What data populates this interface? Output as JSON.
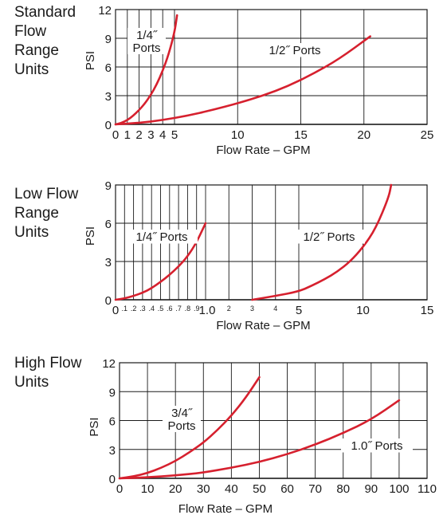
{
  "colors": {
    "curve": "#d6202e",
    "grid": "#1a1a1a",
    "text": "#1a1a1a"
  },
  "chart_data": [
    {
      "type": "line",
      "section_title": "Standard\nFlow\nRange\nUnits",
      "xlabel": "Flow Rate – GPM",
      "ylabel": "PSI",
      "xlim": [
        0,
        25
      ],
      "ylim": [
        0,
        12
      ],
      "x_ticks": [
        0,
        1,
        2,
        3,
        4,
        5,
        10,
        15,
        20,
        25
      ],
      "y_ticks": [
        0,
        3,
        6,
        9,
        12
      ],
      "grid": true,
      "series": [
        {
          "name": "1/4˝\nPorts",
          "x": [
            0,
            0.5,
            1,
            1.5,
            2,
            2.5,
            3,
            3.5,
            4,
            4.5,
            5,
            5.2
          ],
          "y": [
            0,
            0.15,
            0.45,
            0.9,
            1.5,
            2.2,
            3.1,
            4.2,
            5.6,
            7.3,
            9.6,
            11.4
          ]
        },
        {
          "name": "1/2˝ Ports",
          "x": [
            0,
            2,
            4,
            6,
            8,
            10,
            12,
            14,
            16,
            18,
            20.5
          ],
          "y": [
            0,
            0.15,
            0.45,
            0.9,
            1.5,
            2.2,
            3.0,
            4.0,
            5.3,
            6.8,
            9.2
          ]
        }
      ]
    },
    {
      "type": "line",
      "section_title": "Low Flow\nRange\nUnits",
      "xlabel": "Flow Rate – GPM",
      "ylabel": "PSI",
      "xlim": [
        0,
        15
      ],
      "ylim": [
        0,
        9
      ],
      "x_ticks": [
        0,
        5,
        10,
        15
      ],
      "y_ticks": [
        0,
        3,
        6,
        9
      ],
      "minor_ticks": [
        {
          "x": 0.1,
          "label": ".1"
        },
        {
          "x": 0.2,
          "label": ".2"
        },
        {
          "x": 0.3,
          "label": ".3"
        },
        {
          "x": 0.4,
          "label": ".4"
        },
        {
          "x": 0.5,
          "label": ".5"
        },
        {
          "x": 0.6,
          "label": ".6"
        },
        {
          "x": 0.7,
          "label": ".7"
        },
        {
          "x": 0.8,
          "label": ".8"
        },
        {
          "x": 0.9,
          "label": ".9"
        },
        {
          "x": 1.0,
          "label": "1.0"
        },
        {
          "x": 2,
          "label": "2"
        },
        {
          "x": 3,
          "label": "3"
        },
        {
          "x": 4,
          "label": "4"
        }
      ],
      "grid": true,
      "series": [
        {
          "name": "1/4˝ Ports",
          "x": [
            0,
            0.1,
            0.2,
            0.3,
            0.4,
            0.5,
            0.6,
            0.7,
            0.8,
            0.9,
            1.0
          ],
          "y": [
            0,
            0.1,
            0.3,
            0.55,
            0.9,
            1.4,
            1.95,
            2.6,
            3.4,
            4.5,
            6.0
          ]
        },
        {
          "name": "1/2˝ Ports",
          "x": [
            3,
            4,
            5,
            6,
            7,
            8,
            9,
            10,
            11,
            12,
            12.2
          ],
          "y": [
            0,
            0.3,
            0.65,
            1.1,
            1.6,
            2.2,
            3.0,
            4.1,
            5.6,
            8.0,
            9.0
          ]
        }
      ]
    },
    {
      "type": "line",
      "section_title": "High Flow\nUnits",
      "xlabel": "Flow Rate – GPM",
      "ylabel": "PSI",
      "xlim": [
        0,
        110
      ],
      "ylim": [
        0,
        12
      ],
      "x_ticks": [
        0,
        10,
        20,
        30,
        40,
        50,
        60,
        70,
        80,
        90,
        100,
        110
      ],
      "y_ticks": [
        0,
        3,
        6,
        9,
        12
      ],
      "grid": true,
      "series": [
        {
          "name": "3/4˝\nPorts",
          "x": [
            0,
            5,
            10,
            15,
            20,
            25,
            30,
            35,
            40,
            45,
            50
          ],
          "y": [
            0,
            0.2,
            0.55,
            1.1,
            1.8,
            2.7,
            3.7,
            5.0,
            6.5,
            8.3,
            10.5
          ]
        },
        {
          "name": "1.0˝ Ports",
          "x": [
            0,
            10,
            20,
            30,
            40,
            50,
            60,
            70,
            80,
            90,
            100
          ],
          "y": [
            0,
            0.1,
            0.3,
            0.6,
            1.1,
            1.7,
            2.5,
            3.5,
            4.7,
            6.1,
            8.1
          ]
        }
      ]
    }
  ]
}
